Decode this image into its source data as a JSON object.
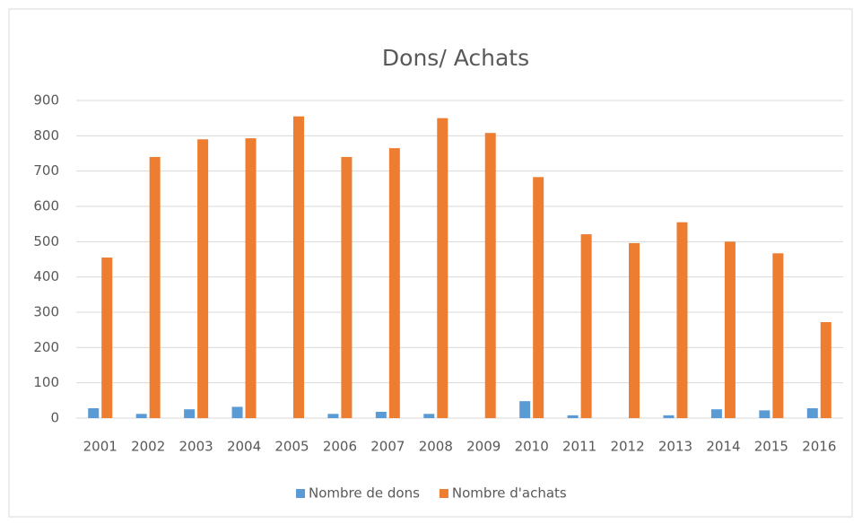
{
  "chart_data": {
    "type": "bar",
    "title": "Dons/ Achats",
    "categories": [
      "2001",
      "2002",
      "2003",
      "2004",
      "2005",
      "2006",
      "2007",
      "2008",
      "2009",
      "2010",
      "2011",
      "2012",
      "2013",
      "2014",
      "2015",
      "2016"
    ],
    "series": [
      {
        "name": "Nombre de dons",
        "color": "#5b9bd5",
        "values": [
          28,
          12,
          25,
          32,
          0,
          12,
          18,
          12,
          0,
          48,
          8,
          0,
          8,
          25,
          22,
          28
        ]
      },
      {
        "name": "Nombre d'achats",
        "color": "#ed7d31",
        "values": [
          455,
          740,
          790,
          793,
          855,
          740,
          765,
          850,
          808,
          683,
          521,
          496,
          555,
          500,
          467,
          272
        ]
      }
    ],
    "ylim": [
      0,
      900
    ],
    "yticks": [
      0,
      100,
      200,
      300,
      400,
      500,
      600,
      700,
      800,
      900
    ],
    "grid": true,
    "legend": "bottom"
  }
}
